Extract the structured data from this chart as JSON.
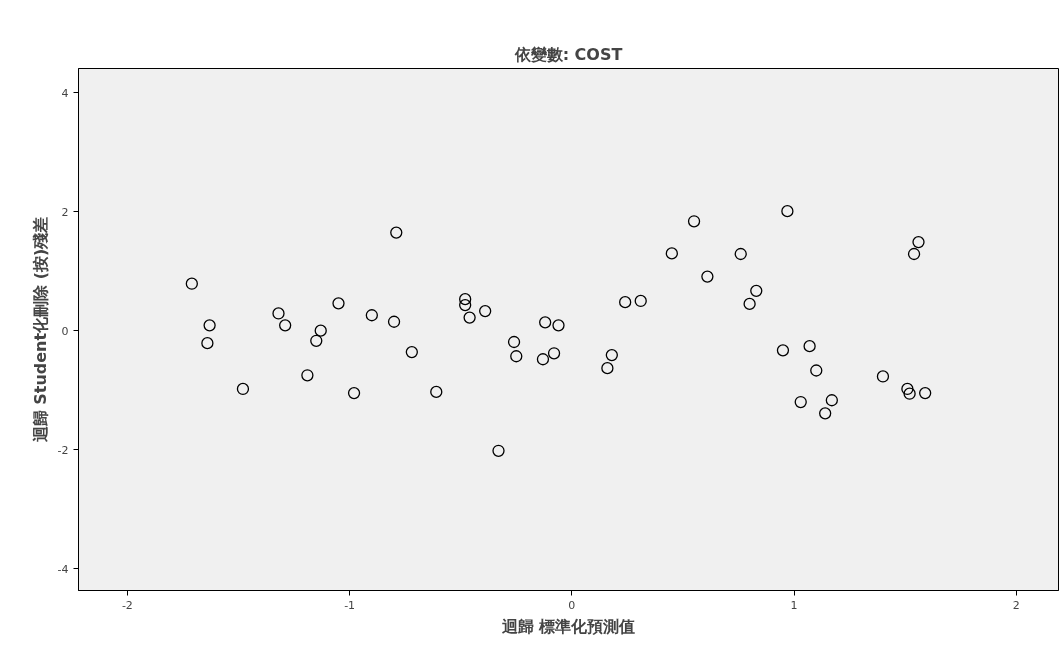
{
  "chart_data": {
    "type": "scatter",
    "title": "依變數: COST",
    "xlabel": "迴歸 標準化預測值",
    "ylabel": "迴歸 Student化刪除 (按)殘差",
    "x": [
      -1.71,
      -1.63,
      -1.64,
      -1.48,
      -1.32,
      -1.29,
      -1.19,
      -1.15,
      -1.13,
      -1.05,
      -0.98,
      -0.9,
      -0.8,
      -0.79,
      -0.72,
      -0.61,
      -0.48,
      -0.48,
      -0.46,
      -0.39,
      -0.33,
      -0.26,
      -0.25,
      -0.13,
      -0.12,
      -0.08,
      -0.06,
      0.16,
      0.18,
      0.24,
      0.31,
      0.45,
      0.55,
      0.61,
      0.76,
      0.8,
      0.83,
      0.95,
      0.97,
      1.03,
      1.07,
      1.1,
      1.14,
      1.17,
      1.4,
      1.51,
      1.52,
      1.54,
      1.56,
      1.59
    ],
    "values": [
      0.79,
      0.09,
      -0.21,
      -0.98,
      0.29,
      0.09,
      -0.75,
      -0.17,
      0.0,
      0.46,
      -1.05,
      0.26,
      0.15,
      1.65,
      -0.36,
      -1.03,
      0.53,
      0.43,
      0.22,
      0.33,
      -2.02,
      -0.19,
      -0.43,
      -0.48,
      0.14,
      -0.38,
      0.09,
      -0.63,
      -0.41,
      0.48,
      0.5,
      1.3,
      1.84,
      0.91,
      1.29,
      0.45,
      0.67,
      -0.33,
      2.01,
      -1.2,
      -0.26,
      -0.67,
      -1.39,
      -1.17,
      -0.77,
      -0.98,
      -1.06,
      1.29,
      1.49,
      -1.05
    ],
    "color": "#000000",
    "marker": "circle",
    "xlim": [
      -2.22,
      2.19
    ],
    "ylim": [
      -4.37,
      4.41
    ],
    "xticks": [
      -2,
      -1,
      0,
      1,
      2
    ],
    "yticks": [
      -4,
      -2,
      0,
      2,
      4
    ],
    "grid": false
  }
}
